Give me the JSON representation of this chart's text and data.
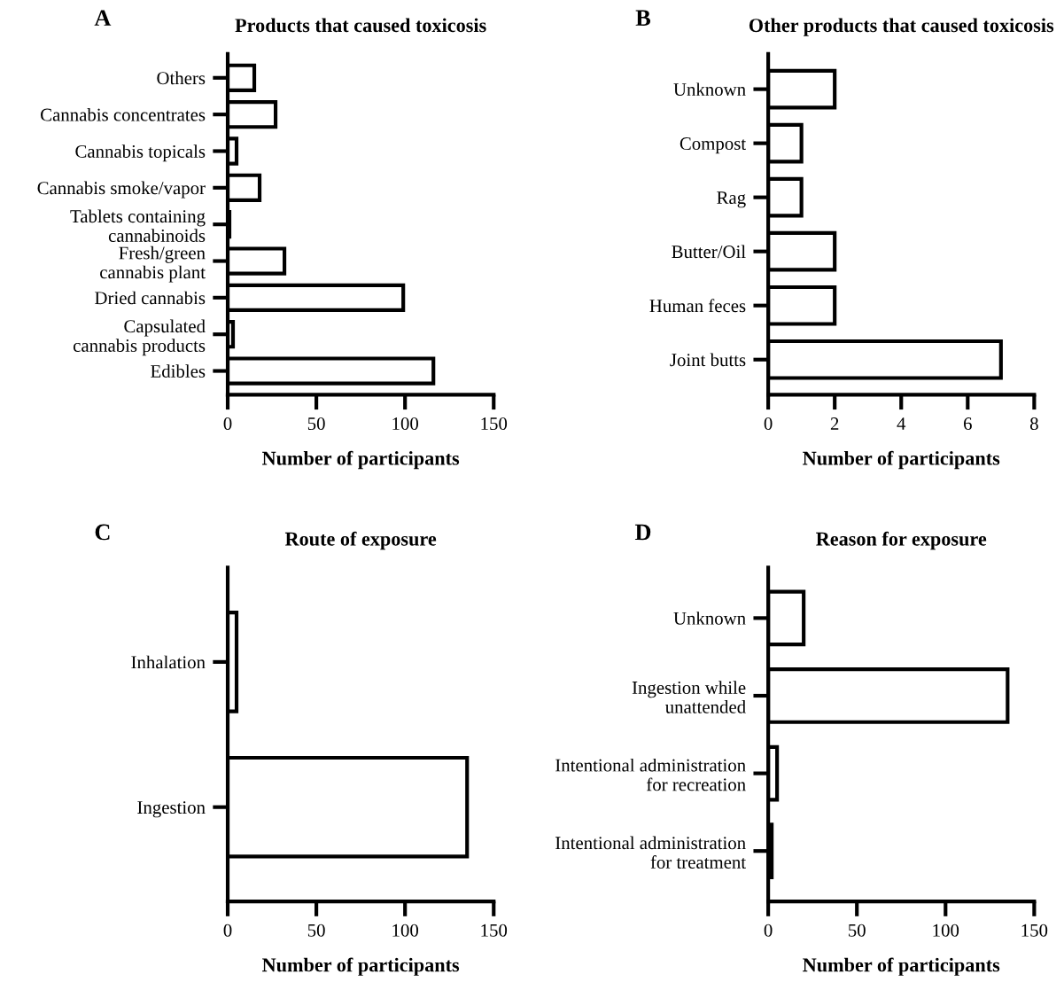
{
  "chart_data": [
    {
      "type": "bar",
      "orientation": "horizontal",
      "title": "Products that caused toxicosis",
      "xlabel": "Number of participants",
      "annotations": [
        "A"
      ],
      "categories": [
        "Others",
        "Cannabis concentrates",
        "Cannabis topicals",
        "Cannabis smoke/vapor",
        "Tablets containing\ncannabinoids",
        "Fresh/green\ncannabis plant",
        "Dried cannabis",
        "Capsulated\ncannabis products",
        "Edibles"
      ],
      "values": [
        15,
        27,
        5,
        18,
        1,
        32,
        99,
        3,
        116
      ],
      "color": "#ffffff",
      "xlim": [
        0,
        150
      ],
      "xticks": [
        0,
        50,
        100,
        150
      ],
      "grid": false,
      "legend": false
    },
    {
      "type": "bar",
      "orientation": "horizontal",
      "title": "Other products that caused toxicosis",
      "xlabel": "Number of participants",
      "annotations": [
        "B"
      ],
      "categories": [
        "Unknown",
        "Compost",
        "Rag",
        "Butter/Oil",
        "Human feces",
        "Joint butts"
      ],
      "values": [
        2,
        1,
        1,
        2,
        2,
        7
      ],
      "color": "#ffffff",
      "xlim": [
        0,
        8
      ],
      "xticks": [
        0,
        2,
        4,
        6,
        8
      ],
      "grid": false,
      "legend": false
    },
    {
      "type": "bar",
      "orientation": "horizontal",
      "title": "Route of exposure",
      "xlabel": "Number of participants",
      "annotations": [
        "C"
      ],
      "categories": [
        "Inhalation",
        "Ingestion"
      ],
      "values": [
        5,
        135
      ],
      "color": "#ffffff",
      "xlim": [
        0,
        150
      ],
      "xticks": [
        0,
        50,
        100,
        150
      ],
      "grid": false,
      "legend": false
    },
    {
      "type": "bar",
      "orientation": "horizontal",
      "title": "Reason for exposure",
      "xlabel": "Number of participants",
      "annotations": [
        "D"
      ],
      "categories": [
        "Unknown",
        "Ingestion while\nunattended",
        "Intentional administration\nfor recreation",
        "Intentional administration\nfor treatment"
      ],
      "values": [
        20,
        135,
        5,
        2
      ],
      "color": "#ffffff",
      "xlim": [
        0,
        150
      ],
      "xticks": [
        0,
        50,
        100,
        150
      ],
      "grid": false,
      "legend": false
    }
  ]
}
